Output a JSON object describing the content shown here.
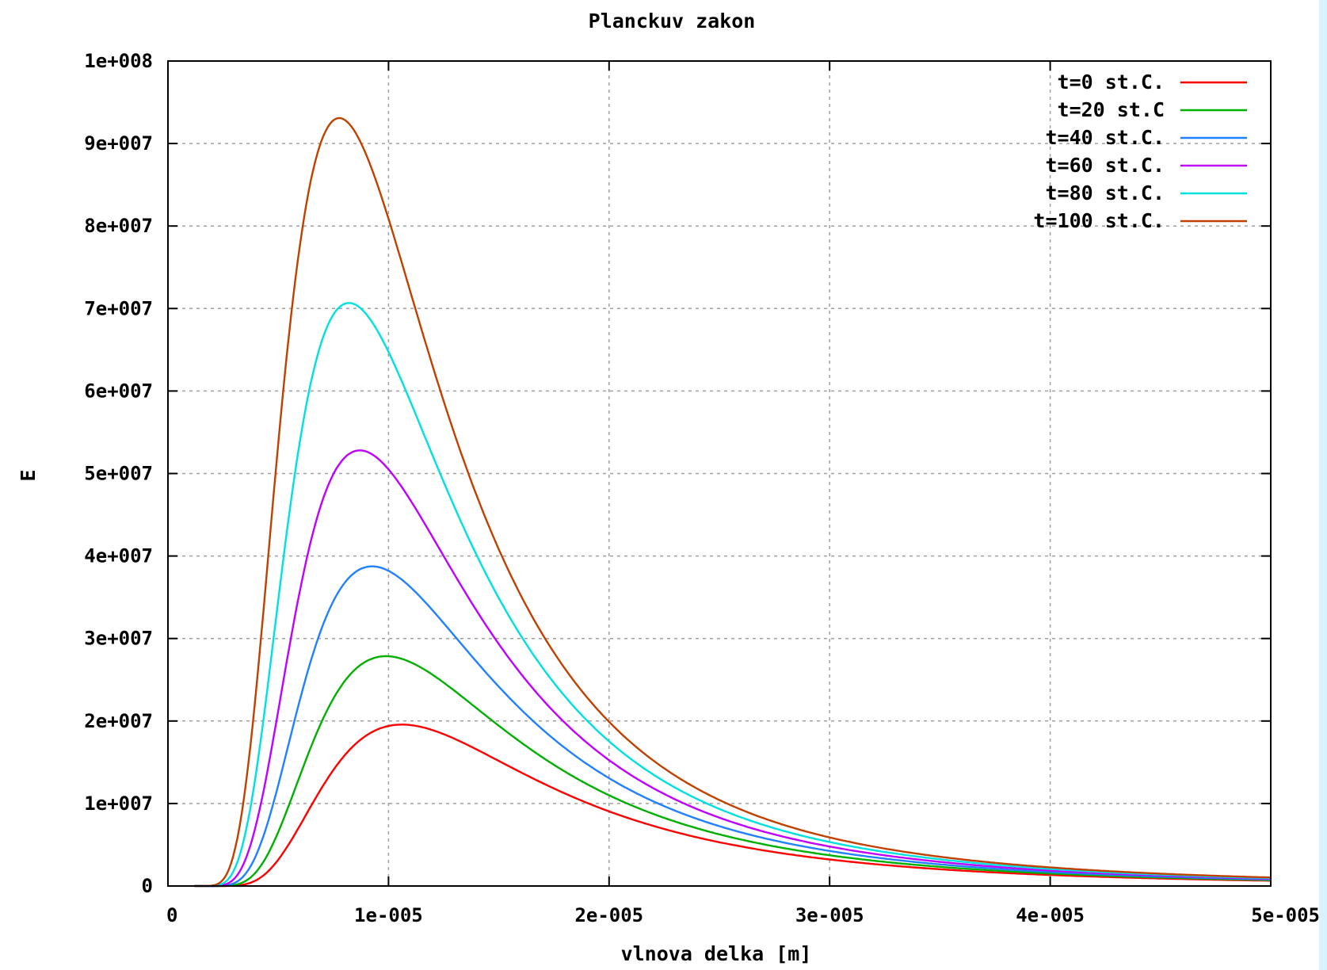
{
  "chart_data": {
    "type": "line",
    "title": "Planckuv zakon",
    "xlabel": "vlnova delka [m]",
    "ylabel": "E",
    "xlim": [
      0,
      5e-05
    ],
    "ylim": [
      0,
      100000000
    ],
    "x_tick_values": [
      0,
      1e-05,
      2e-05,
      3e-05,
      4e-05,
      5e-05
    ],
    "x_tick_labels": [
      "0",
      "1e-005",
      "2e-005",
      "3e-005",
      "4e-005",
      "5e-005"
    ],
    "y_tick_values": [
      0,
      10000000,
      20000000,
      30000000,
      40000000,
      50000000,
      60000000,
      70000000,
      80000000,
      90000000,
      100000000
    ],
    "y_tick_labels": [
      "0",
      "1e+007",
      "2e+007",
      "3e+007",
      "4e+007",
      "5e+007",
      "6e+007",
      "7e+007",
      "8e+007",
      "9e+007",
      "1e+008"
    ],
    "grid": true,
    "legend_position": "top-right",
    "series": [
      {
        "name": "t=0 st.C.",
        "color": "#ff0000",
        "temperature_C": 0
      },
      {
        "name": "t=20 st.C",
        "color": "#00b000",
        "temperature_C": 20
      },
      {
        "name": "t=40 st.C.",
        "color": "#2080ff",
        "temperature_C": 40
      },
      {
        "name": "t=60 st.C.",
        "color": "#c000ff",
        "temperature_C": 60
      },
      {
        "name": "t=80 st.C.",
        "color": "#00e0e0",
        "temperature_C": 80
      },
      {
        "name": "t=100 st.C.",
        "color": "#c04000",
        "temperature_C": 100
      }
    ]
  }
}
